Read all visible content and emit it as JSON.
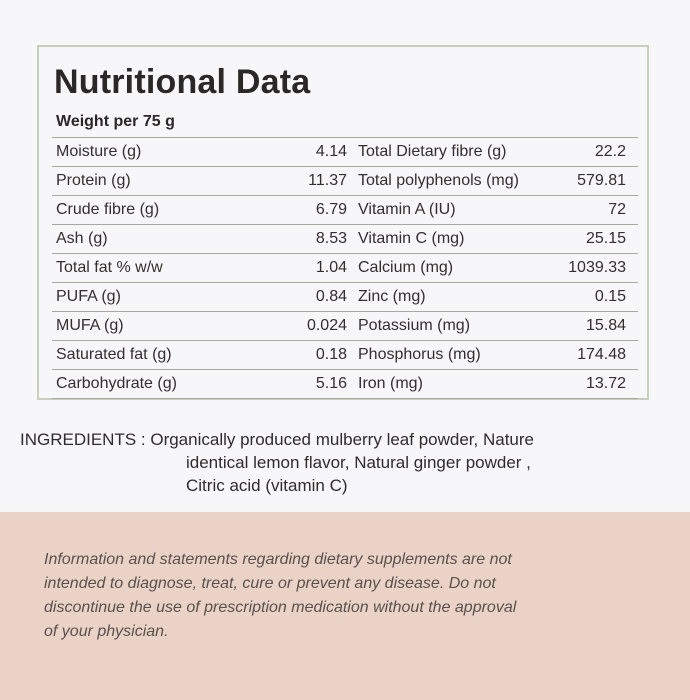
{
  "panel": {
    "title": "Nutritional Data",
    "subtitle": "Weight per 75 g",
    "rows": [
      {
        "left_label": "Moisture (g)",
        "left_value": "4.14",
        "right_label": "Total Dietary fibre (g)",
        "right_value": "22.2"
      },
      {
        "left_label": "Protein (g)",
        "left_value": "11.37",
        "right_label": "Total polyphenols (mg)",
        "right_value": "579.81"
      },
      {
        "left_label": "Crude fibre (g)",
        "left_value": "6.79",
        "right_label": "Vitamin A  (IU)",
        "right_value": "72"
      },
      {
        "left_label": "Ash (g)",
        "left_value": "8.53",
        "right_label": "Vitamin C (mg)",
        "right_value": "25.15"
      },
      {
        "left_label": "Total fat % w/w",
        "left_value": "1.04",
        "right_label": "Calcium (mg)",
        "right_value": "1039.33"
      },
      {
        "left_label": "PUFA (g)",
        "left_value": "0.84",
        "right_label": "Zinc (mg)",
        "right_value": "0.15"
      },
      {
        "left_label": "MUFA (g)",
        "left_value": "0.024",
        "right_label": "Potassium (mg)",
        "right_value": "15.84"
      },
      {
        "left_label": "Saturated fat (g)",
        "left_value": "0.18",
        "right_label": "Phosphorus (mg)",
        "right_value": "174.48"
      },
      {
        "left_label": "Carbohydrate (g)",
        "left_value": "5.16",
        "right_label": "Iron (mg)",
        "right_value": "13.72"
      }
    ]
  },
  "ingredients": {
    "lines": [
      "INGREDIENTS : Organically produced mulberry leaf powder, Nature",
      "identical lemon flavor, Natural ginger powder ,",
      "Citric acid (vitamin C)"
    ]
  },
  "disclaimer": {
    "lines": [
      "Information and statements regarding dietary supplements are not",
      "intended to diagnose, treat, cure or prevent any disease. Do not",
      "discontinue the use of prescription medication without the approval",
      "of your physician."
    ]
  },
  "colors": {
    "background": "#f7f6f8",
    "panel_border": "#c7cfbd",
    "disclaimer_band": "#ead2c7"
  }
}
